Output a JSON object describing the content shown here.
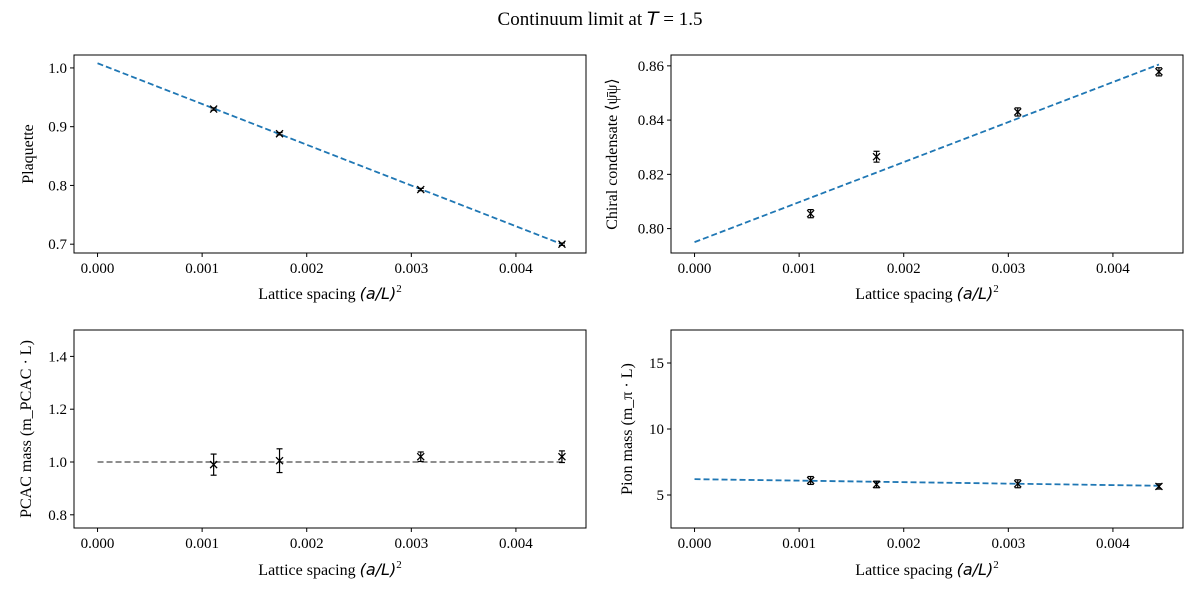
{
  "figure": {
    "suptitle": "Continuum limit at T = 1.5"
  },
  "chart_data": [
    {
      "type": "scatter",
      "xlabel": "Lattice spacing (a/L)²",
      "ylabel": "Plaquette",
      "xlim": [
        -0.000225,
        0.00467
      ],
      "ylim": [
        0.685,
        1.022
      ],
      "xticks": [
        "0.000",
        "0.001",
        "0.002",
        "0.003",
        "0.004"
      ],
      "yticks": [
        "0.7",
        "0.8",
        "0.9",
        "1.0"
      ],
      "points": {
        "x": [
          0.00111,
          0.00174,
          0.00309,
          0.00444
        ],
        "y": [
          0.93,
          0.888,
          0.793,
          0.7
        ],
        "yerr": [
          0.002,
          0.002,
          0.002,
          0.002
        ]
      },
      "fit": {
        "x": [
          0.0,
          0.00444
        ],
        "y": [
          1.008,
          0.7
        ],
        "color": "#1f77b4",
        "style": "dashed"
      }
    },
    {
      "type": "scatter",
      "xlabel": "Lattice spacing (a/L)²",
      "ylabel": "Chiral condensate ⟨ψ̄ψ⟩",
      "xlim": [
        -0.000225,
        0.00467
      ],
      "ylim": [
        0.791,
        0.864
      ],
      "xticks": [
        "0.000",
        "0.001",
        "0.002",
        "0.003",
        "0.004"
      ],
      "yticks": [
        "0.80",
        "0.82",
        "0.84",
        "0.86"
      ],
      "points": {
        "x": [
          0.00111,
          0.00174,
          0.00309,
          0.00444
        ],
        "y": [
          0.8055,
          0.8265,
          0.843,
          0.8578
        ],
        "yerr": [
          0.0015,
          0.002,
          0.0015,
          0.0015
        ]
      },
      "fit": {
        "x": [
          0.0,
          0.00444
        ],
        "y": [
          0.795,
          0.8605
        ],
        "color": "#1f77b4",
        "style": "dashed"
      }
    },
    {
      "type": "scatter",
      "xlabel": "Lattice spacing (a/L)²",
      "ylabel": "PCAC mass (m_PCAC · L)",
      "xlim": [
        -0.000225,
        0.00467
      ],
      "ylim": [
        0.75,
        1.5
      ],
      "xticks": [
        "0.000",
        "0.001",
        "0.002",
        "0.003",
        "0.004"
      ],
      "yticks": [
        "0.8",
        "1.0",
        "1.2",
        "1.4"
      ],
      "points": {
        "x": [
          0.00111,
          0.00174,
          0.00309,
          0.00444
        ],
        "y": [
          0.99,
          1.005,
          1.02,
          1.02
        ],
        "yerr": [
          0.04,
          0.045,
          0.018,
          0.022
        ]
      },
      "fit": {
        "x": [
          0.0,
          0.00444
        ],
        "y": [
          1.0,
          1.0
        ],
        "color": "#7f7f7f",
        "style": "dashed"
      }
    },
    {
      "type": "scatter",
      "xlabel": "Lattice spacing (a/L)²",
      "ylabel": "Pion mass (m_π · L)",
      "xlim": [
        -0.000225,
        0.00467
      ],
      "ylim": [
        2.5,
        17.5
      ],
      "xticks": [
        "0.000",
        "0.001",
        "0.002",
        "0.003",
        "0.004"
      ],
      "yticks": [
        "5",
        "10",
        "15"
      ],
      "points": {
        "x": [
          0.00111,
          0.00174,
          0.00309,
          0.00444
        ],
        "y": [
          6.1,
          5.8,
          5.85,
          5.65
        ],
        "yerr": [
          0.3,
          0.25,
          0.3,
          0.2
        ]
      },
      "fit": {
        "x": [
          0.0,
          0.00444
        ],
        "y": [
          6.2,
          5.7
        ],
        "color": "#1f77b4",
        "style": "dashed"
      }
    }
  ]
}
